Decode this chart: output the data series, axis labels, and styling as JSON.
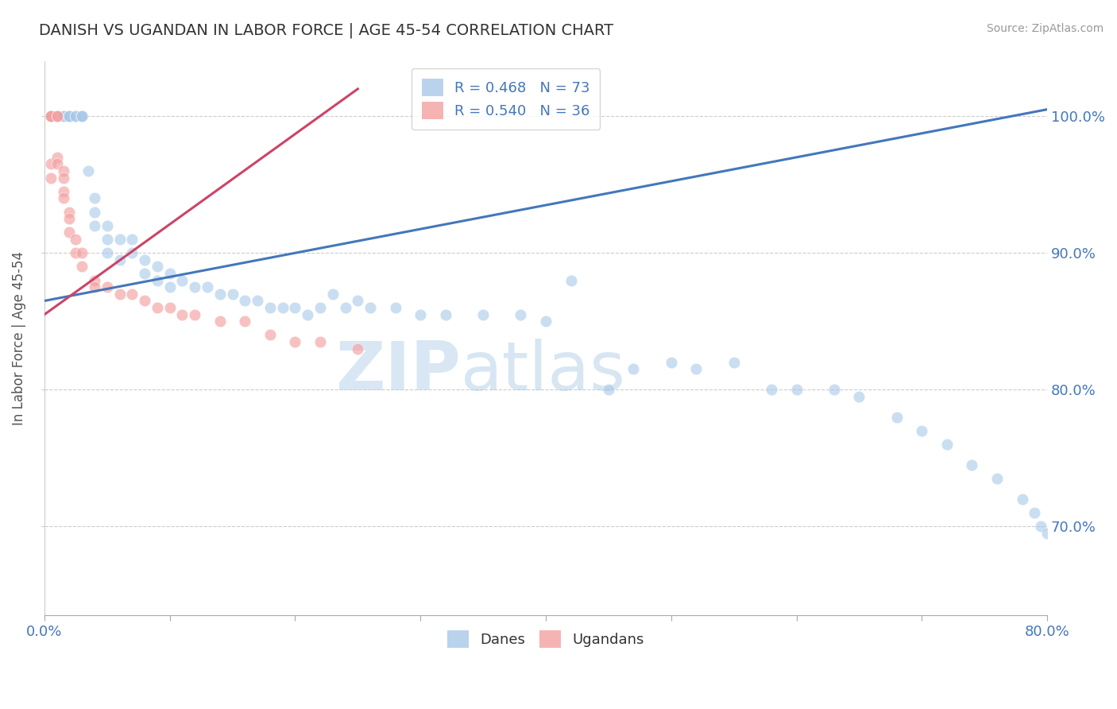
{
  "title": "DANISH VS UGANDAN IN LABOR FORCE | AGE 45-54 CORRELATION CHART",
  "source": "Source: ZipAtlas.com",
  "ylabel": "In Labor Force | Age 45-54",
  "legend_r_blue": "R = 0.468",
  "legend_n_blue": "N = 73",
  "legend_r_pink": "R = 0.540",
  "legend_n_pink": "N = 36",
  "blue_color": "#a8c8e8",
  "pink_color": "#f4a0a0",
  "trend_blue": "#4477bb",
  "trend_pink": "#cc4466",
  "watermark_zip": "ZIP",
  "watermark_atlas": "atlas",
  "danes_scatter_x": [
    0.005,
    0.005,
    0.01,
    0.01,
    0.01,
    0.015,
    0.015,
    0.02,
    0.02,
    0.02,
    0.025,
    0.025,
    0.03,
    0.03,
    0.03,
    0.035,
    0.04,
    0.04,
    0.04,
    0.05,
    0.05,
    0.05,
    0.06,
    0.06,
    0.07,
    0.07,
    0.08,
    0.08,
    0.09,
    0.09,
    0.1,
    0.1,
    0.11,
    0.12,
    0.13,
    0.14,
    0.15,
    0.16,
    0.17,
    0.18,
    0.19,
    0.2,
    0.21,
    0.22,
    0.23,
    0.24,
    0.25,
    0.26,
    0.28,
    0.3,
    0.32,
    0.35,
    0.38,
    0.4,
    0.42,
    0.45,
    0.47,
    0.5,
    0.52,
    0.55,
    0.58,
    0.6,
    0.63,
    0.65,
    0.68,
    0.7,
    0.72,
    0.74,
    0.76,
    0.78,
    0.79,
    0.795,
    0.8
  ],
  "danes_scatter_y": [
    1.0,
    1.0,
    1.0,
    1.0,
    1.0,
    1.0,
    1.0,
    1.0,
    1.0,
    1.0,
    1.0,
    1.0,
    1.0,
    1.0,
    1.0,
    0.96,
    0.94,
    0.93,
    0.92,
    0.92,
    0.91,
    0.9,
    0.91,
    0.895,
    0.91,
    0.9,
    0.895,
    0.885,
    0.89,
    0.88,
    0.885,
    0.875,
    0.88,
    0.875,
    0.875,
    0.87,
    0.87,
    0.865,
    0.865,
    0.86,
    0.86,
    0.86,
    0.855,
    0.86,
    0.87,
    0.86,
    0.865,
    0.86,
    0.86,
    0.855,
    0.855,
    0.855,
    0.855,
    0.85,
    0.88,
    0.8,
    0.815,
    0.82,
    0.815,
    0.82,
    0.8,
    0.8,
    0.8,
    0.795,
    0.78,
    0.77,
    0.76,
    0.745,
    0.735,
    0.72,
    0.71,
    0.7,
    0.695
  ],
  "ugandans_scatter_x": [
    0.005,
    0.005,
    0.005,
    0.005,
    0.005,
    0.01,
    0.01,
    0.01,
    0.01,
    0.015,
    0.015,
    0.015,
    0.015,
    0.02,
    0.02,
    0.02,
    0.025,
    0.025,
    0.03,
    0.03,
    0.04,
    0.04,
    0.05,
    0.06,
    0.07,
    0.08,
    0.09,
    0.1,
    0.11,
    0.12,
    0.14,
    0.16,
    0.18,
    0.2,
    0.22,
    0.25
  ],
  "ugandans_scatter_y": [
    1.0,
    1.0,
    1.0,
    0.965,
    0.955,
    1.0,
    1.0,
    0.97,
    0.965,
    0.96,
    0.955,
    0.945,
    0.94,
    0.93,
    0.925,
    0.915,
    0.91,
    0.9,
    0.9,
    0.89,
    0.88,
    0.875,
    0.875,
    0.87,
    0.87,
    0.865,
    0.86,
    0.86,
    0.855,
    0.855,
    0.85,
    0.85,
    0.84,
    0.835,
    0.835,
    0.83
  ],
  "blue_trend_x": [
    0.0,
    0.8
  ],
  "blue_trend_y": [
    0.865,
    1.005
  ],
  "pink_trend_x": [
    0.0,
    0.25
  ],
  "pink_trend_y": [
    0.855,
    1.02
  ],
  "xlim": [
    0.0,
    0.8
  ],
  "ylim": [
    0.635,
    1.04
  ],
  "yticks": [
    0.7,
    0.8,
    0.9,
    1.0
  ],
  "ytick_labels": [
    "70.0%",
    "80.0%",
    "90.0%",
    "100.0%"
  ],
  "xtick_left_label": "0.0%",
  "xtick_right_label": "80.0%"
}
